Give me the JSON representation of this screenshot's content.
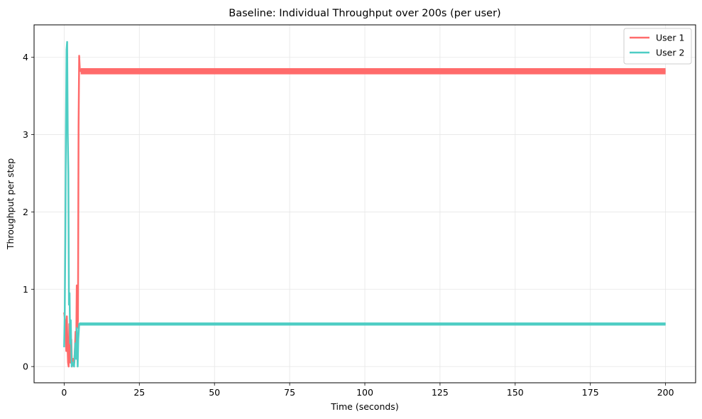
{
  "chart_data": {
    "type": "line",
    "title": "Baseline: Individual Throughput over 200s (per user)",
    "xlabel": "Time (seconds)",
    "ylabel": "Throughput per step",
    "xlim": [
      -10,
      210
    ],
    "ylim": [
      -0.21,
      4.42
    ],
    "xticks": [
      0,
      25,
      50,
      75,
      100,
      125,
      150,
      175,
      200
    ],
    "yticks": [
      0,
      1,
      2,
      3,
      4
    ],
    "grid": true,
    "legend_position": "top-right",
    "series": [
      {
        "name": "User 1",
        "color": "#ff6b6b",
        "points": [
          [
            0,
            0.7
          ],
          [
            0.3,
            0.6
          ],
          [
            0.5,
            0.45
          ],
          [
            0.7,
            0.2
          ],
          [
            0.9,
            0.65
          ],
          [
            1.1,
            0.3
          ],
          [
            1.3,
            0.05
          ],
          [
            1.5,
            0.0
          ],
          [
            1.7,
            0.55
          ],
          [
            1.9,
            0.4
          ],
          [
            2.1,
            0.05
          ],
          [
            2.4,
            0.35
          ],
          [
            2.6,
            0.0
          ],
          [
            3.0,
            0.1
          ],
          [
            3.4,
            0.05
          ],
          [
            3.8,
            0.45
          ],
          [
            4.0,
            0.2
          ],
          [
            4.2,
            1.05
          ],
          [
            4.4,
            0.5
          ],
          [
            4.6,
            0.6
          ],
          [
            4.8,
            3.1
          ],
          [
            5.0,
            4.02
          ],
          [
            5.2,
            3.85
          ],
          [
            5.5,
            3.82
          ],
          [
            200,
            3.82
          ]
        ],
        "band": [
          3.78,
          3.86
        ]
      },
      {
        "name": "User 2",
        "color": "#4ecdc4",
        "points": [
          [
            0,
            0.25
          ],
          [
            0.2,
            0.7
          ],
          [
            0.4,
            1.65
          ],
          [
            0.6,
            3.1
          ],
          [
            0.8,
            4.1
          ],
          [
            1.0,
            4.2
          ],
          [
            1.2,
            3.0
          ],
          [
            1.4,
            2.5
          ],
          [
            1.6,
            0.8
          ],
          [
            1.8,
            0.95
          ],
          [
            2.0,
            0.3
          ],
          [
            2.2,
            0.6
          ],
          [
            2.5,
            0.0
          ],
          [
            2.9,
            0.05
          ],
          [
            3.3,
            0.0
          ],
          [
            3.7,
            0.3
          ],
          [
            4.0,
            0.1
          ],
          [
            4.2,
            0.5
          ],
          [
            4.5,
            0.0
          ],
          [
            4.7,
            0.35
          ],
          [
            5.0,
            0.55
          ],
          [
            200,
            0.55
          ]
        ],
        "band": [
          0.53,
          0.57
        ]
      }
    ]
  }
}
